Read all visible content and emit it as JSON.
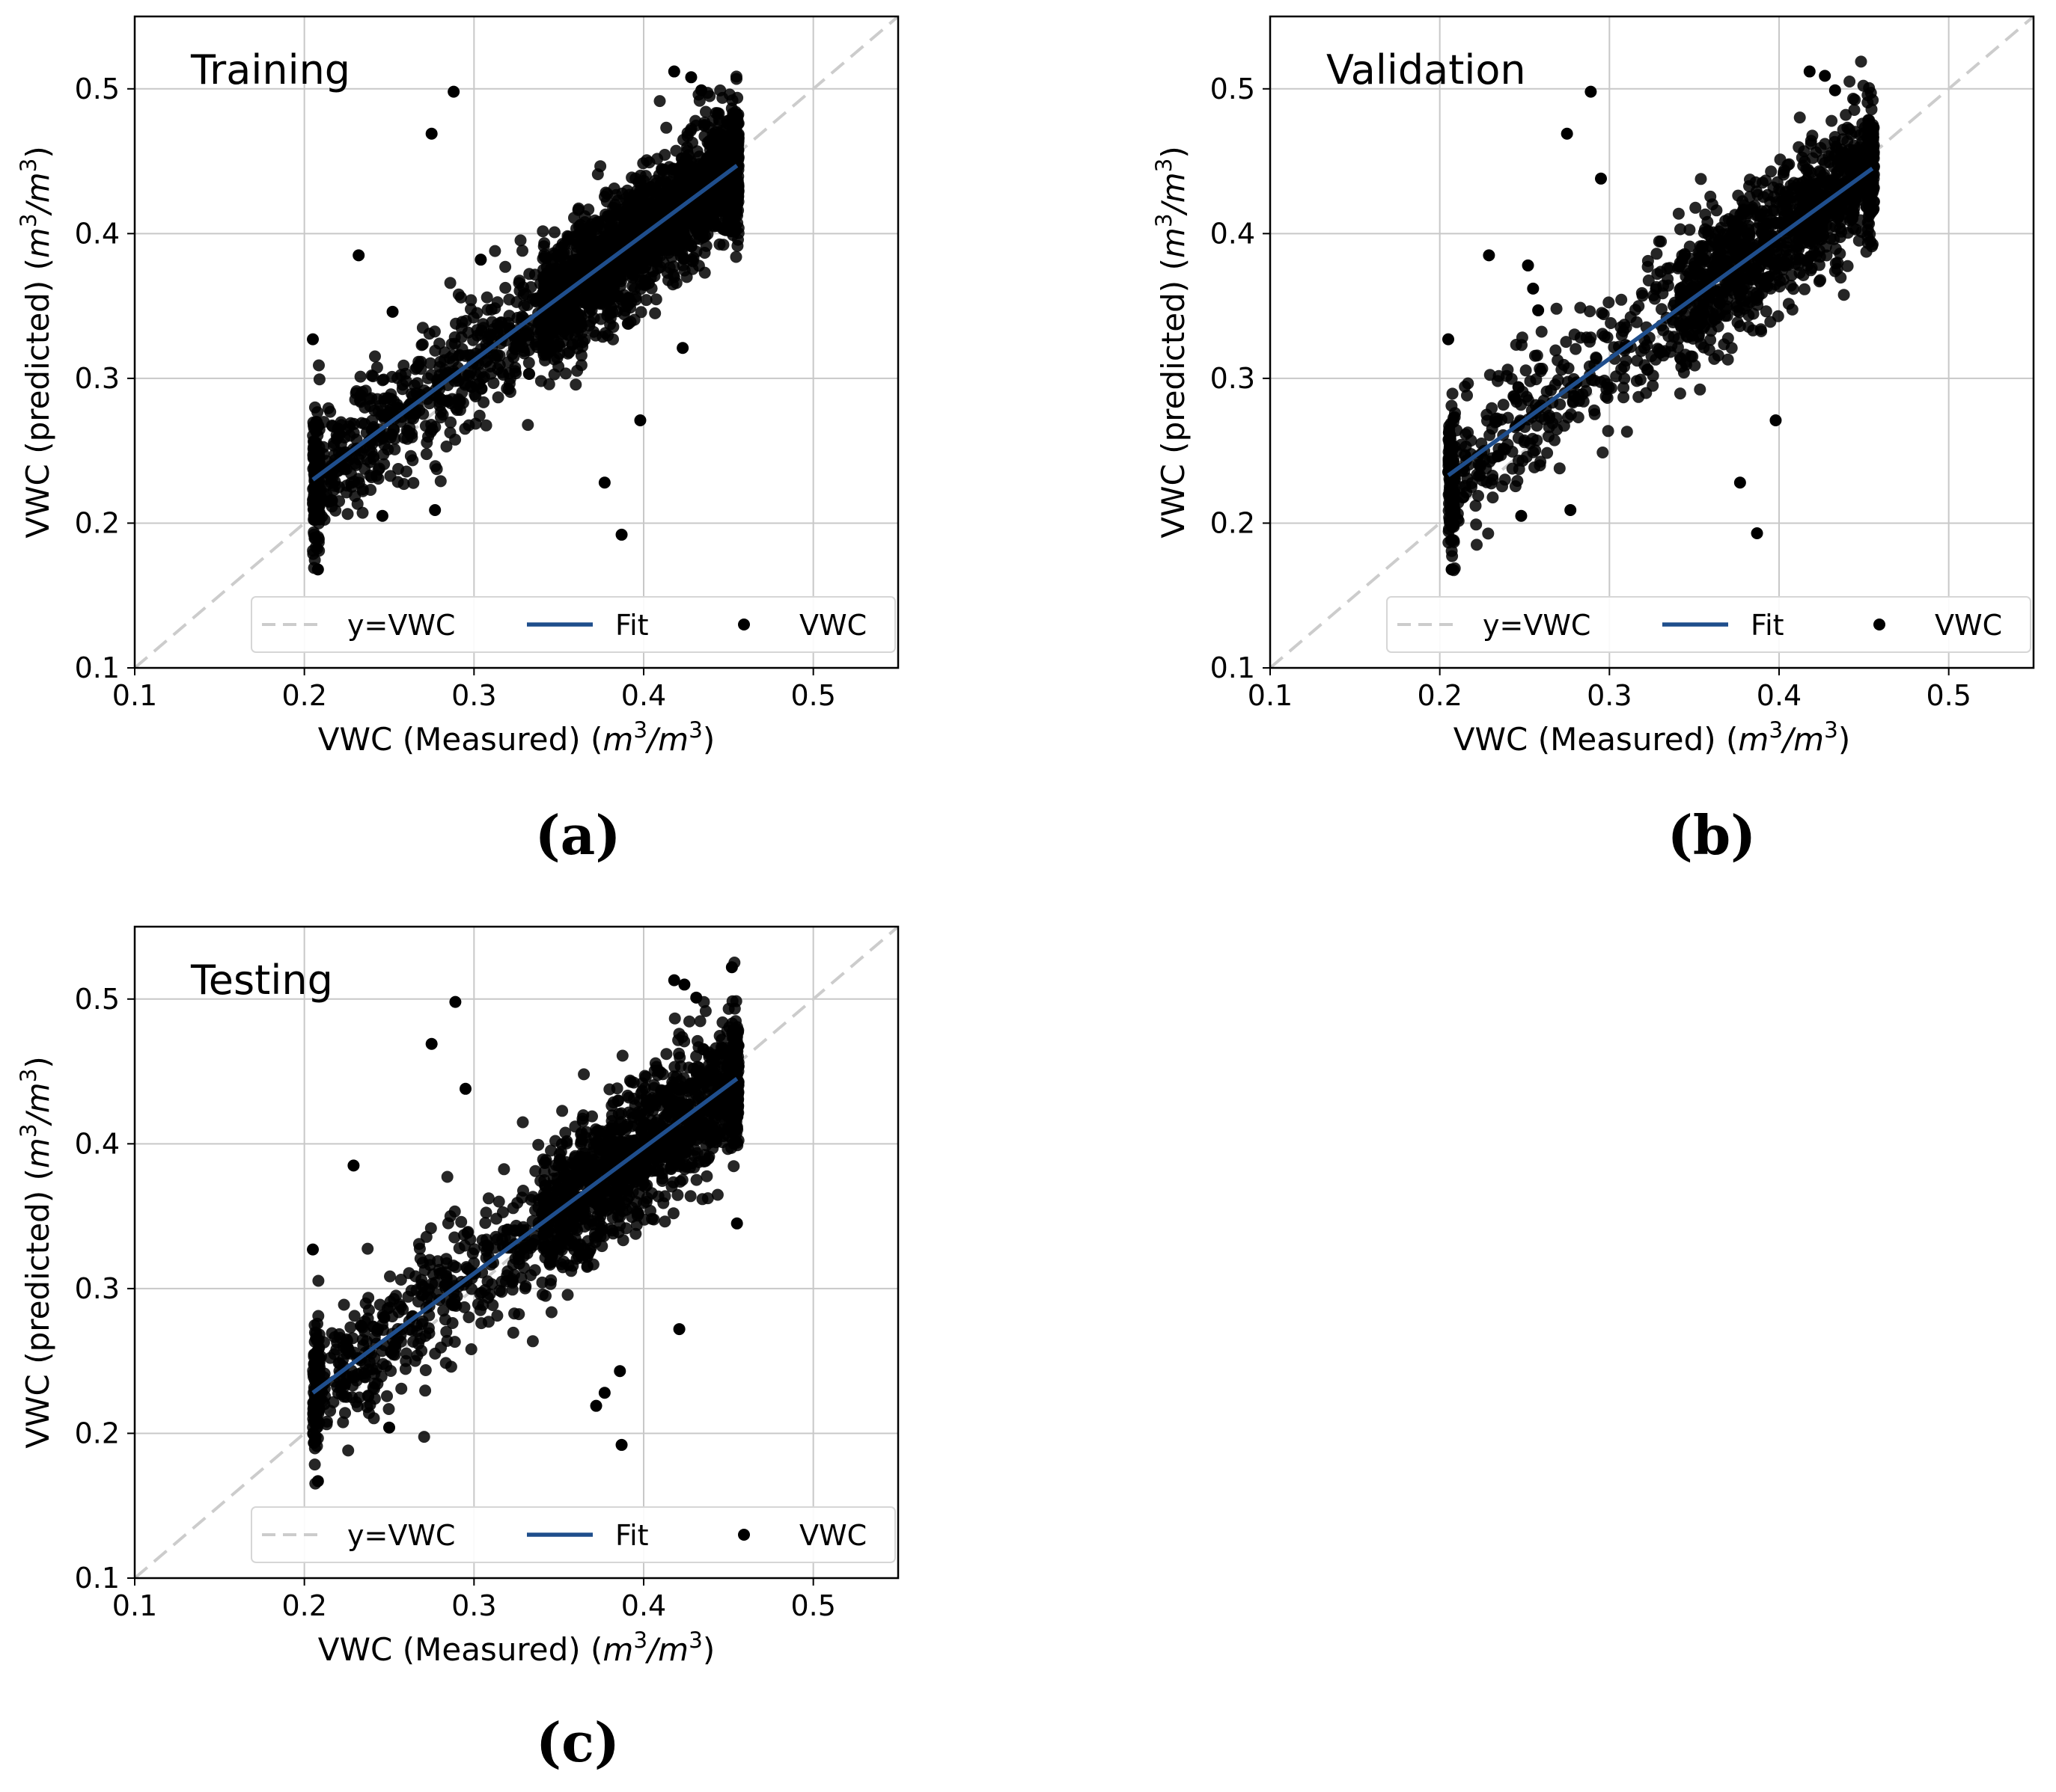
{
  "figure": {
    "captions": [
      "(a)",
      "(b)",
      "(c)"
    ]
  },
  "colors": {
    "fit": "#1f4e8c",
    "identity": "#cccccc",
    "points": "#000000",
    "grid": "#c8c8c8",
    "axes": "#000000"
  },
  "chart_data": [
    {
      "type": "scatter",
      "panel_label": "(a)",
      "title": "Training",
      "xlabel": "VWC (Measured) (m³/m³)",
      "ylabel": "VWC (predicted) (m³/m³)",
      "xlim": [
        0.1,
        0.55
      ],
      "ylim": [
        0.1,
        0.55
      ],
      "xticks": [
        0.1,
        0.2,
        0.3,
        0.4,
        0.5
      ],
      "yticks": [
        0.1,
        0.2,
        0.3,
        0.4,
        0.5
      ],
      "grid": true,
      "legend_position": "lower-right",
      "legend": [
        "y=VWC",
        "Fit",
        "VWC"
      ],
      "identity_line": {
        "name": "y=VWC",
        "x": [
          0.1,
          0.55
        ],
        "y": [
          0.1,
          0.55
        ]
      },
      "fit_line": {
        "name": "Fit",
        "x": [
          0.205,
          0.455
        ],
        "y": [
          0.23,
          0.447
        ]
      },
      "point_cloud": {
        "name": "VWC",
        "seed": 11,
        "count": 2600,
        "x_range": [
          0.205,
          0.455
        ],
        "fit_slope": 0.868,
        "fit_intercept": 0.052,
        "noise_sd": 0.022,
        "outliers": [
          [
            0.275,
            0.469
          ],
          [
            0.288,
            0.498
          ],
          [
            0.232,
            0.385
          ],
          [
            0.418,
            0.512
          ],
          [
            0.428,
            0.508
          ],
          [
            0.434,
            0.499
          ],
          [
            0.398,
            0.271
          ],
          [
            0.377,
            0.228
          ],
          [
            0.387,
            0.192
          ],
          [
            0.423,
            0.321
          ],
          [
            0.277,
            0.209
          ],
          [
            0.246,
            0.205
          ],
          [
            0.205,
            0.327
          ],
          [
            0.208,
            0.168
          ],
          [
            0.252,
            0.346
          ],
          [
            0.304,
            0.382
          ]
        ]
      }
    },
    {
      "type": "scatter",
      "panel_label": "(b)",
      "title": "Validation",
      "xlabel": "VWC (Measured) (m³/m³)",
      "ylabel": "VWC (predicted) (m³/m³)",
      "xlim": [
        0.1,
        0.55
      ],
      "ylim": [
        0.1,
        0.55
      ],
      "xticks": [
        0.1,
        0.2,
        0.3,
        0.4,
        0.5
      ],
      "yticks": [
        0.1,
        0.2,
        0.3,
        0.4,
        0.5
      ],
      "grid": true,
      "legend_position": "lower-right",
      "legend": [
        "y=VWC",
        "Fit",
        "VWC"
      ],
      "identity_line": {
        "name": "y=VWC",
        "x": [
          0.1,
          0.55
        ],
        "y": [
          0.1,
          0.55
        ]
      },
      "fit_line": {
        "name": "Fit",
        "x": [
          0.205,
          0.455
        ],
        "y": [
          0.233,
          0.445
        ]
      },
      "point_cloud": {
        "name": "VWC",
        "seed": 23,
        "count": 1500,
        "x_range": [
          0.205,
          0.455
        ],
        "fit_slope": 0.848,
        "fit_intercept": 0.059,
        "noise_sd": 0.024,
        "outliers": [
          [
            0.275,
            0.469
          ],
          [
            0.289,
            0.498
          ],
          [
            0.295,
            0.438
          ],
          [
            0.229,
            0.385
          ],
          [
            0.252,
            0.378
          ],
          [
            0.255,
            0.362
          ],
          [
            0.258,
            0.347
          ],
          [
            0.418,
            0.512
          ],
          [
            0.427,
            0.509
          ],
          [
            0.433,
            0.499
          ],
          [
            0.398,
            0.271
          ],
          [
            0.377,
            0.228
          ],
          [
            0.387,
            0.193
          ],
          [
            0.277,
            0.209
          ],
          [
            0.248,
            0.205
          ],
          [
            0.205,
            0.327
          ],
          [
            0.207,
            0.168
          ]
        ]
      }
    },
    {
      "type": "scatter",
      "panel_label": "(c)",
      "title": "Testing",
      "xlabel": "VWC (Measured) (m³/m³)",
      "ylabel": "VWC (predicted) (m³/m³)",
      "xlim": [
        0.1,
        0.55
      ],
      "ylim": [
        0.1,
        0.55
      ],
      "xticks": [
        0.1,
        0.2,
        0.3,
        0.4,
        0.5
      ],
      "yticks": [
        0.1,
        0.2,
        0.3,
        0.4,
        0.5
      ],
      "grid": true,
      "legend_position": "lower-right",
      "legend": [
        "y=VWC",
        "Fit",
        "VWC"
      ],
      "identity_line": {
        "name": "y=VWC",
        "x": [
          0.1,
          0.55
        ],
        "y": [
          0.1,
          0.55
        ]
      },
      "fit_line": {
        "name": "Fit",
        "x": [
          0.205,
          0.455
        ],
        "y": [
          0.228,
          0.445
        ]
      },
      "point_cloud": {
        "name": "VWC",
        "seed": 37,
        "count": 1900,
        "x_range": [
          0.205,
          0.455
        ],
        "fit_slope": 0.868,
        "fit_intercept": 0.05,
        "noise_sd": 0.024,
        "outliers": [
          [
            0.275,
            0.469
          ],
          [
            0.289,
            0.498
          ],
          [
            0.295,
            0.438
          ],
          [
            0.229,
            0.385
          ],
          [
            0.418,
            0.513
          ],
          [
            0.424,
            0.51
          ],
          [
            0.452,
            0.522
          ],
          [
            0.431,
            0.501
          ],
          [
            0.387,
            0.192
          ],
          [
            0.377,
            0.228
          ],
          [
            0.372,
            0.219
          ],
          [
            0.386,
            0.243
          ],
          [
            0.421,
            0.272
          ],
          [
            0.455,
            0.345
          ],
          [
            0.205,
            0.327
          ],
          [
            0.208,
            0.167
          ],
          [
            0.25,
            0.204
          ]
        ]
      }
    }
  ]
}
